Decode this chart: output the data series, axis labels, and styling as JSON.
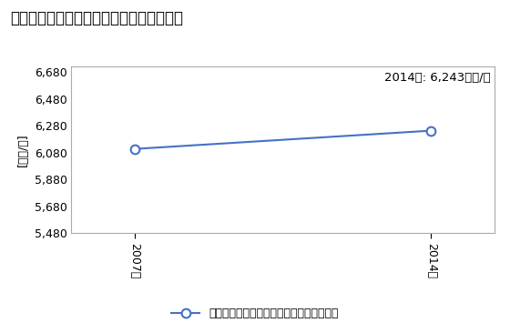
{
  "title": "卸売業の従業者一人当たり年間商品販売額",
  "ylabel": "[万円/人]",
  "years": [
    2007,
    2014
  ],
  "values": [
    6107,
    6243
  ],
  "ylim": [
    5480,
    6720
  ],
  "yticks": [
    5480,
    5680,
    5880,
    6080,
    6280,
    6480,
    6680
  ],
  "annotation": "2014年: 6,243万円/人",
  "legend_label": "卸売業の従業者一人当たり年間商品販売額",
  "line_color": "#4472C4",
  "marker_color": "#4472C4",
  "background_color": "#FFFFFF",
  "plot_bg_color": "#FFFFFF",
  "border_color": "#AAAAAA",
  "title_fontsize": 12,
  "axis_fontsize": 9,
  "annotation_fontsize": 9.5,
  "legend_fontsize": 9
}
